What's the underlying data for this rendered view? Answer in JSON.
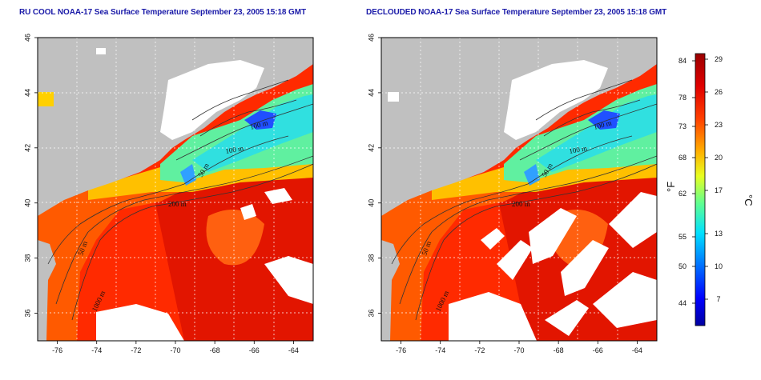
{
  "panels": [
    {
      "id": "left",
      "title": "RU COOL NOAA-17 Sea Surface Temperature September 23, 2005 15:18 GMT",
      "declouded": false
    },
    {
      "id": "right",
      "title": "DECLOUDED NOAA-17 Sea Surface Temperature September 23, 2005 15:18 GMT",
      "declouded": true
    }
  ],
  "map": {
    "lon_range": [
      -77,
      -63
    ],
    "lat_range": [
      35,
      46
    ],
    "lon_ticks": [
      -76,
      -74,
      -72,
      -70,
      -68,
      -66,
      -64
    ],
    "lat_ticks": [
      36,
      38,
      40,
      42,
      44,
      46
    ],
    "contour_labels": [
      "100 m",
      "100 m",
      "50 m",
      "200 m",
      "50 m",
      "1000 m"
    ],
    "colors": {
      "land": "#c0c0c0",
      "cloud": "#ffffff",
      "contour": "#333333",
      "grid": "#ffffff"
    }
  },
  "colorbar": {
    "fahrenheit_ticks": [
      "84",
      "78",
      "73",
      "68",
      "62",
      "55",
      "50",
      "44"
    ],
    "celsius_ticks": [
      "29",
      "26",
      "23",
      "20",
      "17",
      "13",
      "10",
      "7"
    ],
    "unit_f": "°F",
    "unit_c": "°C",
    "stops": [
      "#000080",
      "#0000ff",
      "#0080ff",
      "#00ffff",
      "#80ff80",
      "#ffff00",
      "#ffa000",
      "#ff3000",
      "#c00000",
      "#800000"
    ]
  }
}
